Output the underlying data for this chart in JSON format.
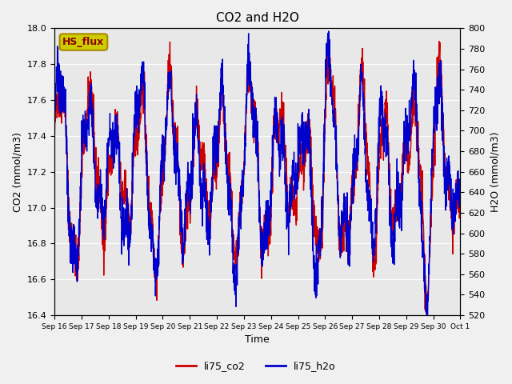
{
  "title": "CO2 and H2O",
  "xlabel": "Time",
  "ylabel_left": "CO2 (mmol/m3)",
  "ylabel_right": "H2O (mmol/m3)",
  "ylim_left": [
    16.4,
    18.0
  ],
  "ylim_right": [
    520,
    800
  ],
  "background_color": "#f0f0f0",
  "plot_bg_color": "#e8e8e8",
  "xtick_labels": [
    "Sep 16",
    "Sep 17",
    "Sep 18",
    "Sep 19",
    "Sep 20",
    "Sep 21",
    "Sep 22",
    "Sep 23",
    "Sep 24",
    "Sep 25",
    "Sep 26",
    "Sep 27",
    "Sep 28",
    "Sep 29",
    "Sep 30",
    "Oct 1"
  ],
  "xtick_positions": [
    0,
    1,
    2,
    3,
    4,
    5,
    6,
    7,
    8,
    9,
    10,
    11,
    12,
    13,
    14,
    15
  ],
  "legend_labels": [
    "li75_co2",
    "li75_h2o"
  ],
  "co2_color": "#cc0000",
  "h2o_color": "#0000cc",
  "annotation_text": "HS_flux",
  "annotation_bg": "#cccc00",
  "annotation_border": "#aa8800",
  "linewidth": 1.0,
  "yticks_left": [
    16.4,
    16.6,
    16.8,
    17.0,
    17.2,
    17.4,
    17.6,
    17.8,
    18.0
  ],
  "yticks_right": [
    520,
    540,
    560,
    580,
    600,
    620,
    640,
    660,
    680,
    700,
    720,
    740,
    760,
    780,
    800
  ]
}
